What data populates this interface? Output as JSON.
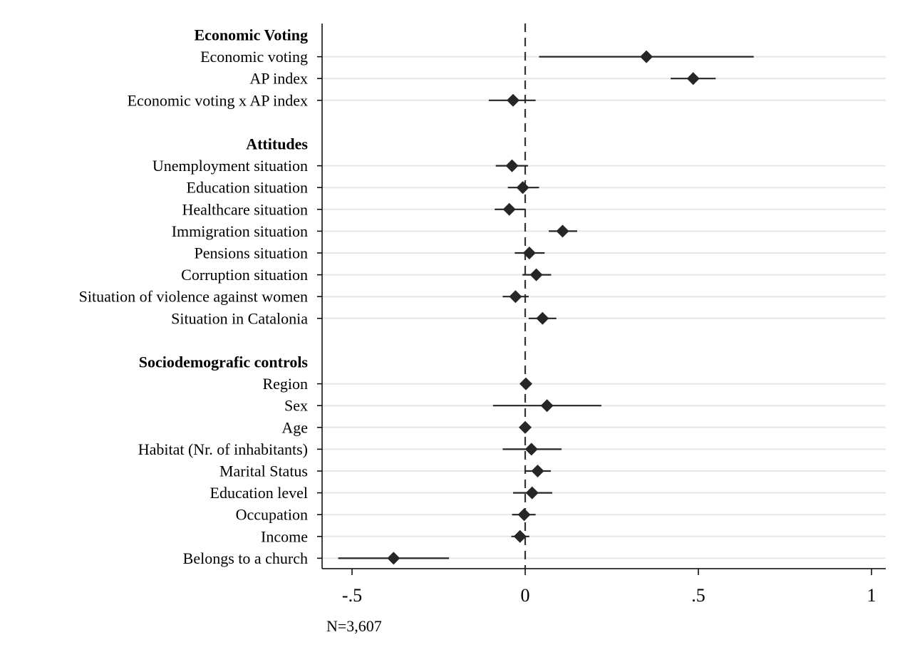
{
  "chart_data": {
    "type": "coefficient-plot",
    "xlim": [
      -0.58,
      1.05
    ],
    "x_ticks": [
      -0.5,
      0,
      0.5,
      1
    ],
    "x_tick_labels": [
      "-.5",
      "0",
      ".5",
      "1"
    ],
    "reference_line": 0,
    "grid": true,
    "note": "N=3,607",
    "colors": {
      "marker": "#262626",
      "ci": "#262626",
      "grid": "#e6e6e6",
      "axis": "#000000"
    },
    "groups": [
      {
        "header": "Economic Voting",
        "rows": [
          {
            "label": "Economic voting",
            "estimate": 0.35,
            "ci_low": 0.04,
            "ci_high": 0.66
          },
          {
            "label": "AP index",
            "estimate": 0.485,
            "ci_low": 0.42,
            "ci_high": 0.55
          },
          {
            "label": "Economic voting x AP index",
            "estimate": -0.035,
            "ci_low": -0.105,
            "ci_high": 0.03
          }
        ]
      },
      {
        "header": "Attitudes",
        "rows": [
          {
            "label": "Unemployment situation",
            "estimate": -0.038,
            "ci_low": -0.085,
            "ci_high": 0.008
          },
          {
            "label": "Education situation",
            "estimate": -0.007,
            "ci_low": -0.05,
            "ci_high": 0.04
          },
          {
            "label": "Healthcare situation",
            "estimate": -0.046,
            "ci_low": -0.088,
            "ci_high": 0.0
          },
          {
            "label": "Immigration situation",
            "estimate": 0.108,
            "ci_low": 0.068,
            "ci_high": 0.15
          },
          {
            "label": "Pensions situation",
            "estimate": 0.012,
            "ci_low": -0.03,
            "ci_high": 0.056
          },
          {
            "label": "Corruption situation",
            "estimate": 0.032,
            "ci_low": -0.008,
            "ci_high": 0.075
          },
          {
            "label": "Situation of violence against women",
            "estimate": -0.028,
            "ci_low": -0.065,
            "ci_high": 0.01
          },
          {
            "label": "Situation in Catalonia",
            "estimate": 0.05,
            "ci_low": 0.01,
            "ci_high": 0.09
          }
        ]
      },
      {
        "header": "Sociodemografic controls",
        "rows": [
          {
            "label": "Region",
            "estimate": 0.002,
            "ci_low": -0.004,
            "ci_high": 0.008
          },
          {
            "label": "Sex",
            "estimate": 0.063,
            "ci_low": -0.093,
            "ci_high": 0.22
          },
          {
            "label": "Age",
            "estimate": 0.0,
            "ci_low": -0.004,
            "ci_high": 0.004
          },
          {
            "label": "Habitat (Nr. of inhabitants)",
            "estimate": 0.018,
            "ci_low": -0.065,
            "ci_high": 0.105
          },
          {
            "label": "Marital Status",
            "estimate": 0.036,
            "ci_low": 0.0,
            "ci_high": 0.074
          },
          {
            "label": "Education level",
            "estimate": 0.02,
            "ci_low": -0.035,
            "ci_high": 0.078
          },
          {
            "label": "Occupation",
            "estimate": -0.003,
            "ci_low": -0.038,
            "ci_high": 0.03
          },
          {
            "label": "Income",
            "estimate": -0.015,
            "ci_low": -0.04,
            "ci_high": 0.012
          },
          {
            "label": "Belongs to a church",
            "estimate": -0.38,
            "ci_low": -0.54,
            "ci_high": -0.22
          }
        ]
      }
    ]
  }
}
